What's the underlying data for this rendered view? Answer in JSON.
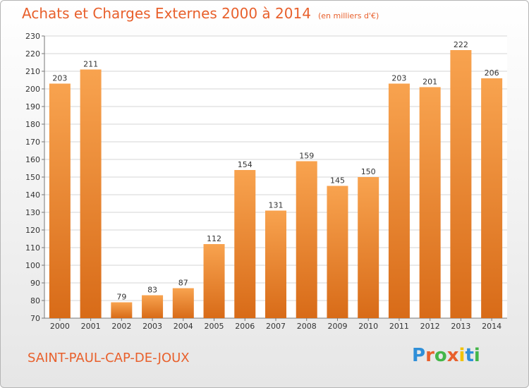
{
  "header": {
    "title": "Achats et Charges Externes 2000 à 2014",
    "unit": "(en milliers d'€)"
  },
  "footer": {
    "commune": "SAINT-PAUL-CAP-DE-JOUX",
    "logo_text": "Proxiti"
  },
  "colors": {
    "bar_light": "#f8a34f",
    "bar_dark": "#d86b18",
    "title": "#e8602c",
    "grid": "#d5d5d5",
    "logo": [
      "#2f8fd8",
      "#e8602c",
      "#44b649",
      "#e8602c",
      "#f2c200",
      "#2f8fd8",
      "#44b649"
    ]
  },
  "chart_data": {
    "type": "bar",
    "categories": [
      "2000",
      "2001",
      "2002",
      "2003",
      "2004",
      "2005",
      "2006",
      "2007",
      "2008",
      "2009",
      "2010",
      "2011",
      "2012",
      "2013",
      "2014"
    ],
    "values": [
      203,
      211,
      79,
      83,
      87,
      112,
      154,
      131,
      159,
      145,
      150,
      203,
      201,
      222,
      206
    ],
    "title": "Achats et Charges Externes 2000 à 2014",
    "ylim": [
      70,
      230
    ],
    "yticks": [
      70,
      80,
      90,
      100,
      110,
      120,
      130,
      140,
      150,
      160,
      170,
      180,
      190,
      200,
      210,
      220,
      230
    ],
    "grid": true,
    "legend": "none"
  }
}
